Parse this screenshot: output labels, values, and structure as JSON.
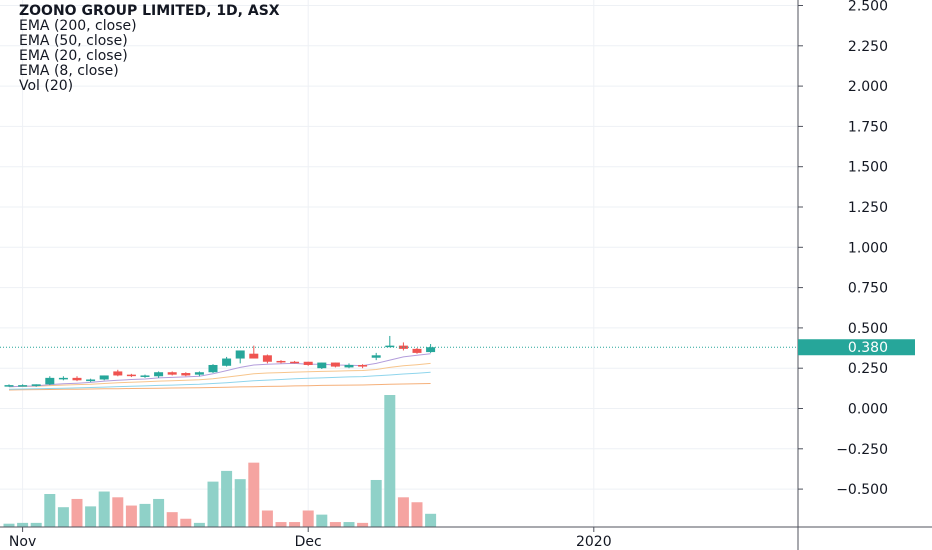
{
  "legend": {
    "title": "ZOONO GROUP LIMITED, 1D, ASX",
    "studies": [
      "EMA (200, close)",
      "EMA (50, close)",
      "EMA (20, close)",
      "EMA (8, close)",
      "Vol (20)"
    ]
  },
  "colors": {
    "up": "#26a69a",
    "down": "#ef5350",
    "vol_up": "#8fd1c8",
    "vol_down": "#f5a4a1",
    "ema_200": "#f5b07a",
    "ema_50": "#8fd5ec",
    "ema_20": "#f7c58c",
    "ema_8": "#b39ddb",
    "grid": "#eef1f5",
    "axis_line": "#50535e",
    "axis_text": "#131722",
    "price_line": "#26a69a",
    "price_badge": "#26a69a"
  },
  "chart_data": {
    "type": "candlestick",
    "title": "ZOONO GROUP LIMITED, 1D, ASX",
    "y_ticks": [
      "2.500",
      "2.250",
      "2.000",
      "1.750",
      "1.500",
      "1.250",
      "1.000",
      "0.750",
      "0.500",
      "0.250",
      "0.000",
      "−0.250",
      "−0.500"
    ],
    "y_tick_values": [
      2.5,
      2.25,
      2.0,
      1.75,
      1.5,
      1.25,
      1.0,
      0.75,
      0.5,
      0.25,
      0.0,
      -0.25,
      -0.5
    ],
    "x_ticks": [
      "Nov",
      "Dec",
      "2020"
    ],
    "x_tick_index": [
      1,
      22,
      43
    ],
    "last_price": "0.380",
    "candles": [
      {
        "o": 0.145,
        "h": 0.15,
        "l": 0.135,
        "c": 0.145
      },
      {
        "o": 0.145,
        "h": 0.15,
        "l": 0.14,
        "c": 0.145
      },
      {
        "o": 0.14,
        "h": 0.15,
        "l": 0.135,
        "c": 0.15
      },
      {
        "o": 0.15,
        "h": 0.2,
        "l": 0.145,
        "c": 0.19
      },
      {
        "o": 0.185,
        "h": 0.2,
        "l": 0.175,
        "c": 0.19
      },
      {
        "o": 0.19,
        "h": 0.2,
        "l": 0.17,
        "c": 0.175
      },
      {
        "o": 0.17,
        "h": 0.185,
        "l": 0.165,
        "c": 0.18
      },
      {
        "o": 0.18,
        "h": 0.205,
        "l": 0.175,
        "c": 0.205
      },
      {
        "o": 0.23,
        "h": 0.24,
        "l": 0.2,
        "c": 0.205
      },
      {
        "o": 0.21,
        "h": 0.215,
        "l": 0.195,
        "c": 0.205
      },
      {
        "o": 0.2,
        "h": 0.21,
        "l": 0.19,
        "c": 0.205
      },
      {
        "o": 0.2,
        "h": 0.23,
        "l": 0.19,
        "c": 0.225
      },
      {
        "o": 0.225,
        "h": 0.23,
        "l": 0.205,
        "c": 0.21
      },
      {
        "o": 0.22,
        "h": 0.225,
        "l": 0.2,
        "c": 0.205
      },
      {
        "o": 0.21,
        "h": 0.23,
        "l": 0.2,
        "c": 0.225
      },
      {
        "o": 0.225,
        "h": 0.275,
        "l": 0.22,
        "c": 0.27
      },
      {
        "o": 0.265,
        "h": 0.32,
        "l": 0.26,
        "c": 0.31
      },
      {
        "o": 0.31,
        "h": 0.36,
        "l": 0.28,
        "c": 0.36
      },
      {
        "o": 0.34,
        "h": 0.39,
        "l": 0.31,
        "c": 0.31
      },
      {
        "o": 0.33,
        "h": 0.335,
        "l": 0.28,
        "c": 0.29
      },
      {
        "o": 0.295,
        "h": 0.3,
        "l": 0.28,
        "c": 0.29
      },
      {
        "o": 0.29,
        "h": 0.295,
        "l": 0.28,
        "c": 0.285
      },
      {
        "o": 0.29,
        "h": 0.29,
        "l": 0.265,
        "c": 0.27
      },
      {
        "o": 0.25,
        "h": 0.285,
        "l": 0.245,
        "c": 0.285
      },
      {
        "o": 0.285,
        "h": 0.285,
        "l": 0.255,
        "c": 0.26
      },
      {
        "o": 0.255,
        "h": 0.28,
        "l": 0.25,
        "c": 0.27
      },
      {
        "o": 0.27,
        "h": 0.275,
        "l": 0.25,
        "c": 0.26
      },
      {
        "o": 0.315,
        "h": 0.345,
        "l": 0.3,
        "c": 0.33
      },
      {
        "o": 0.39,
        "h": 0.45,
        "l": 0.38,
        "c": 0.39
      },
      {
        "o": 0.39,
        "h": 0.41,
        "l": 0.36,
        "c": 0.37
      },
      {
        "o": 0.37,
        "h": 0.375,
        "l": 0.34,
        "c": 0.345
      },
      {
        "o": 0.35,
        "h": 0.4,
        "l": 0.345,
        "c": 0.38
      }
    ],
    "volumes": [
      4,
      5,
      5,
      40,
      24,
      34,
      25,
      43,
      36,
      26,
      28,
      34,
      18,
      10,
      5,
      55,
      68,
      58,
      78,
      20,
      6,
      6,
      20,
      15,
      6,
      6,
      5,
      57,
      160,
      36,
      30,
      16
    ],
    "ema_8": [
      0.135,
      0.138,
      0.14,
      0.148,
      0.153,
      0.157,
      0.162,
      0.17,
      0.175,
      0.18,
      0.183,
      0.19,
      0.193,
      0.196,
      0.2,
      0.215,
      0.235,
      0.255,
      0.27,
      0.275,
      0.278,
      0.28,
      0.275,
      0.275,
      0.27,
      0.268,
      0.266,
      0.28,
      0.3,
      0.32,
      0.33,
      0.34
    ],
    "ema_20": [
      0.135,
      0.137,
      0.138,
      0.142,
      0.145,
      0.148,
      0.15,
      0.155,
      0.16,
      0.163,
      0.166,
      0.17,
      0.172,
      0.175,
      0.178,
      0.185,
      0.195,
      0.205,
      0.215,
      0.22,
      0.223,
      0.226,
      0.228,
      0.23,
      0.232,
      0.234,
      0.236,
      0.242,
      0.255,
      0.265,
      0.272,
      0.28
    ],
    "ema_50": [
      0.12,
      0.121,
      0.122,
      0.124,
      0.126,
      0.128,
      0.13,
      0.133,
      0.136,
      0.138,
      0.14,
      0.143,
      0.145,
      0.148,
      0.15,
      0.155,
      0.16,
      0.166,
      0.172,
      0.176,
      0.18,
      0.184,
      0.188,
      0.19,
      0.193,
      0.196,
      0.198,
      0.203,
      0.208,
      0.214,
      0.219,
      0.225
    ],
    "ema_200": [
      0.115,
      0.116,
      0.117,
      0.118,
      0.119,
      0.12,
      0.121,
      0.122,
      0.123,
      0.124,
      0.125,
      0.126,
      0.127,
      0.128,
      0.129,
      0.13,
      0.132,
      0.134,
      0.135,
      0.137,
      0.138,
      0.14,
      0.141,
      0.143,
      0.144,
      0.145,
      0.146,
      0.148,
      0.15,
      0.152,
      0.153,
      0.155
    ]
  }
}
